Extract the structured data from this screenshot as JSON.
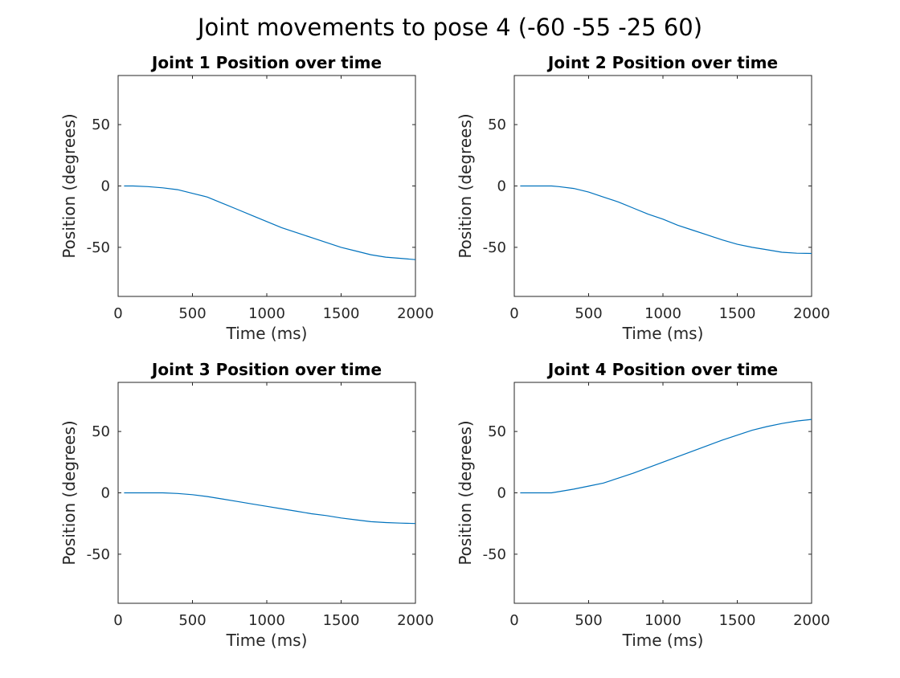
{
  "figure": {
    "title": "Joint movements to pose 4 (-60 -55 -25 60)"
  },
  "chart_data": [
    {
      "type": "line",
      "title": "Joint 1 Position over time",
      "xlabel": "Time (ms)",
      "ylabel": "Position (degrees)",
      "xlim": [
        0,
        2000
      ],
      "ylim": [
        -90,
        90
      ],
      "xticks": [
        0,
        500,
        1000,
        1500,
        2000
      ],
      "yticks": [
        -50,
        0,
        50
      ],
      "grid": false,
      "line_color": "#0072BD",
      "x": [
        40,
        100,
        200,
        300,
        400,
        500,
        600,
        700,
        800,
        900,
        1000,
        1100,
        1200,
        1300,
        1400,
        1500,
        1600,
        1700,
        1800,
        1900,
        2000
      ],
      "y": [
        0,
        0,
        -0.5,
        -1.5,
        -3,
        -6,
        -9,
        -14,
        -19,
        -24,
        -29,
        -34,
        -38,
        -42,
        -46,
        -50,
        -53,
        -56,
        -58,
        -59,
        -60
      ]
    },
    {
      "type": "line",
      "title": "Joint 2 Position over time",
      "xlabel": "Time (ms)",
      "ylabel": "Position (degrees)",
      "xlim": [
        0,
        2000
      ],
      "ylim": [
        -90,
        90
      ],
      "xticks": [
        0,
        500,
        1000,
        1500,
        2000
      ],
      "yticks": [
        -50,
        0,
        50
      ],
      "grid": false,
      "line_color": "#0072BD",
      "x": [
        40,
        100,
        200,
        250,
        300,
        400,
        500,
        600,
        700,
        800,
        900,
        1000,
        1100,
        1200,
        1300,
        1400,
        1500,
        1600,
        1700,
        1800,
        1900,
        2000
      ],
      "y": [
        0,
        0,
        0,
        0,
        -0.5,
        -2,
        -5,
        -9,
        -13,
        -18,
        -23,
        -27,
        -32,
        -36,
        -40,
        -44,
        -47.5,
        -50,
        -52,
        -54,
        -54.8,
        -55
      ]
    },
    {
      "type": "line",
      "title": "Joint 3 Position over time",
      "xlabel": "Time (ms)",
      "ylabel": "Position (degrees)",
      "xlim": [
        0,
        2000
      ],
      "ylim": [
        -90,
        90
      ],
      "xticks": [
        0,
        500,
        1000,
        1500,
        2000
      ],
      "yticks": [
        -50,
        0,
        50
      ],
      "grid": false,
      "line_color": "#0072BD",
      "x": [
        40,
        100,
        200,
        300,
        400,
        500,
        600,
        700,
        800,
        900,
        1000,
        1100,
        1200,
        1300,
        1400,
        1500,
        1600,
        1700,
        1800,
        1900,
        2000
      ],
      "y": [
        0,
        0,
        0,
        0,
        -0.5,
        -1.5,
        -3,
        -5,
        -7,
        -9,
        -11,
        -13,
        -15,
        -17,
        -18.5,
        -20.5,
        -22,
        -23.5,
        -24.2,
        -24.7,
        -25
      ]
    },
    {
      "type": "line",
      "title": "Joint 4 Position over time",
      "xlabel": "Time (ms)",
      "ylabel": "Position (degrees)",
      "xlim": [
        0,
        2000
      ],
      "ylim": [
        -90,
        90
      ],
      "xticks": [
        0,
        500,
        1000,
        1500,
        2000
      ],
      "yticks": [
        -50,
        0,
        50
      ],
      "grid": false,
      "line_color": "#0072BD",
      "x": [
        40,
        100,
        200,
        250,
        300,
        400,
        500,
        600,
        700,
        800,
        900,
        1000,
        1100,
        1200,
        1300,
        1400,
        1500,
        1600,
        1700,
        1800,
        1900,
        2000
      ],
      "y": [
        0,
        0,
        0,
        0,
        1,
        3,
        5.5,
        8,
        12,
        16,
        20.5,
        25,
        29.5,
        34,
        38.5,
        43,
        47,
        51,
        54,
        56.5,
        58.5,
        59.8
      ]
    }
  ]
}
